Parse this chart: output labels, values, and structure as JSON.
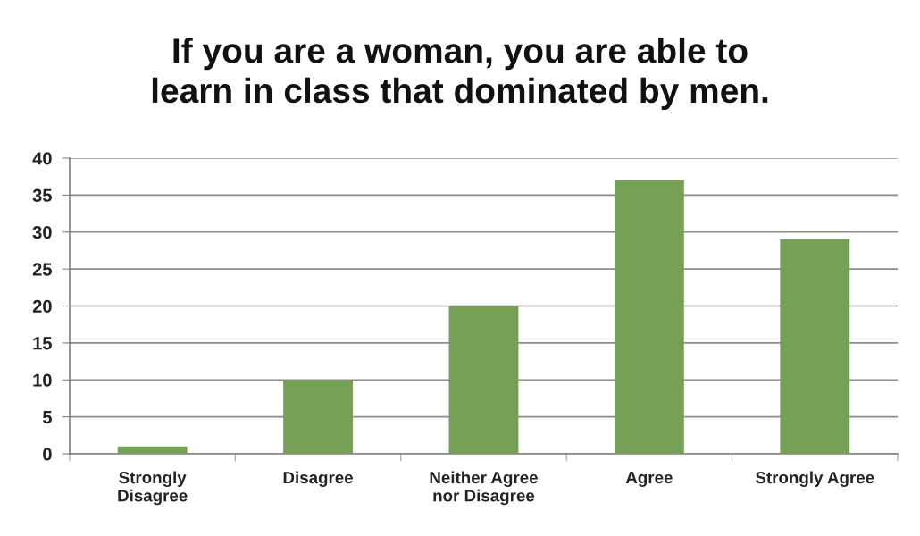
{
  "chart_data": {
    "type": "bar",
    "title": "If you are a woman, you are able to\nlearn in class that dominated by men.",
    "categories": [
      "Strongly\nDisagree",
      "Disagree",
      "Neither Agree\nnor Disagree",
      "Agree",
      "Strongly Agree"
    ],
    "values": [
      1,
      10,
      20,
      37,
      29
    ],
    "color": "#76a055",
    "ylim": [
      0,
      40
    ],
    "yticks": [
      0,
      5,
      10,
      15,
      20,
      25,
      30,
      35,
      40
    ],
    "grid": "y",
    "legend": false
  }
}
